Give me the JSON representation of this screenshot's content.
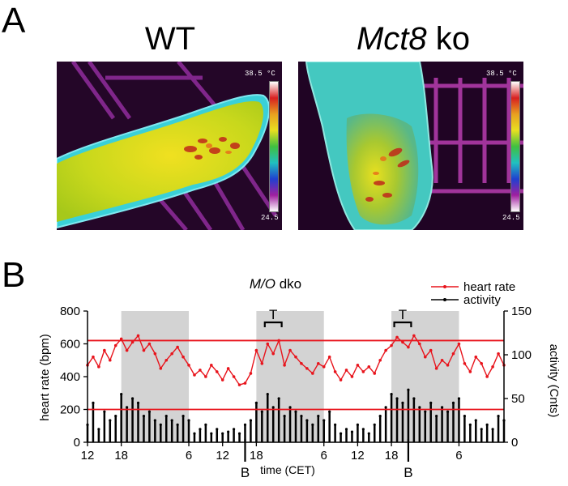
{
  "panel_a": {
    "letter": "A",
    "wt": {
      "title": "WT",
      "scale_max": "38.5 °C",
      "scale_min": "24.5"
    },
    "ko": {
      "title_italic": "Mct8",
      "title_rest": " ko",
      "scale_max": "38.5 °C",
      "scale_min": "24.5"
    }
  },
  "panel_b": {
    "letter": "B",
    "title_italic": "M/O",
    "title_rest": " dko",
    "markers": {
      "t": "T",
      "b": "B"
    }
  },
  "chart_data": {
    "type": "line",
    "title": "M/O dko",
    "xlabel": "time (CET)",
    "ylabel": "heart rate (bpm)",
    "y2label": "activity (Cnts)",
    "ylim": [
      0,
      800
    ],
    "y2lim": [
      0,
      150
    ],
    "yticks": [
      "0",
      "200",
      "400",
      "600",
      "800"
    ],
    "y2ticks": [
      "0",
      "50",
      "100",
      "150"
    ],
    "xticks": [
      "12",
      "18",
      "6",
      "12",
      "18",
      "6",
      "12",
      "18",
      "6"
    ],
    "xtick_hours": [
      12,
      18,
      30,
      36,
      42,
      54,
      60,
      66,
      78
    ],
    "xlim_hours": [
      12,
      86
    ],
    "dark_periods_hours": [
      [
        18,
        30
      ],
      [
        42,
        54
      ],
      [
        66,
        78
      ]
    ],
    "reference_lines_bpm": [
      620,
      200
    ],
    "t_brackets_hours": [
      [
        43.5,
        46.5
      ],
      [
        66.5,
        69.5
      ]
    ],
    "b_markers_hours": [
      40,
      69
    ],
    "legend": {
      "position": "top-right",
      "entries": [
        "heart rate",
        "activity"
      ]
    },
    "colors": {
      "heart_rate": "#e8141c",
      "activity": "#000000",
      "dark_phase": "#d3d3d3",
      "reference": "#e8141c"
    },
    "series": [
      {
        "name": "heart rate",
        "axis": "left",
        "x_hours": [
          12,
          13,
          14,
          15,
          16,
          17,
          18,
          19,
          20,
          21,
          22,
          23,
          24,
          25,
          26,
          27,
          28,
          29,
          30,
          31,
          32,
          33,
          34,
          35,
          36,
          37,
          38,
          39,
          40,
          41,
          42,
          43,
          44,
          45,
          46,
          47,
          48,
          49,
          50,
          51,
          52,
          53,
          54,
          55,
          56,
          57,
          58,
          59,
          60,
          61,
          62,
          63,
          64,
          65,
          66,
          67,
          68,
          69,
          70,
          71,
          72,
          73,
          74,
          75,
          76,
          77,
          78,
          79,
          80,
          81,
          82,
          83,
          84,
          85,
          86
        ],
        "values": [
          470,
          520,
          460,
          560,
          500,
          590,
          630,
          560,
          610,
          650,
          560,
          600,
          540,
          450,
          500,
          540,
          580,
          520,
          470,
          410,
          440,
          400,
          470,
          430,
          380,
          450,
          400,
          350,
          360,
          420,
          560,
          480,
          600,
          540,
          620,
          470,
          560,
          520,
          480,
          450,
          420,
          480,
          460,
          520,
          430,
          380,
          440,
          400,
          470,
          430,
          460,
          420,
          500,
          560,
          590,
          640,
          610,
          580,
          650,
          600,
          520,
          560,
          450,
          500,
          470,
          540,
          600,
          480,
          430,
          520,
          480,
          400,
          460,
          540,
          470
        ]
      },
      {
        "name": "activity",
        "axis": "right",
        "x_hours": [
          12,
          13,
          14,
          15,
          16,
          17,
          18,
          19,
          20,
          21,
          22,
          23,
          24,
          25,
          26,
          27,
          28,
          29,
          30,
          31,
          32,
          33,
          34,
          35,
          36,
          37,
          38,
          39,
          40,
          41,
          42,
          43,
          44,
          45,
          46,
          47,
          48,
          49,
          50,
          51,
          52,
          53,
          54,
          55,
          56,
          57,
          58,
          59,
          60,
          61,
          62,
          63,
          64,
          65,
          66,
          67,
          68,
          69,
          70,
          71,
          72,
          73,
          74,
          75,
          76,
          77,
          78,
          79,
          80,
          81,
          82,
          83,
          84,
          85,
          86
        ],
        "values": [
          20,
          45,
          15,
          35,
          25,
          30,
          55,
          40,
          50,
          45,
          30,
          35,
          25,
          20,
          30,
          25,
          20,
          30,
          25,
          10,
          15,
          20,
          10,
          15,
          10,
          12,
          15,
          10,
          20,
          25,
          45,
          35,
          55,
          40,
          50,
          30,
          40,
          35,
          30,
          25,
          20,
          30,
          25,
          35,
          20,
          10,
          15,
          12,
          20,
          15,
          10,
          20,
          30,
          40,
          55,
          50,
          45,
          60,
          50,
          40,
          35,
          45,
          30,
          40,
          35,
          45,
          50,
          30,
          20,
          25,
          15,
          20,
          15,
          30,
          25
        ]
      }
    ]
  }
}
